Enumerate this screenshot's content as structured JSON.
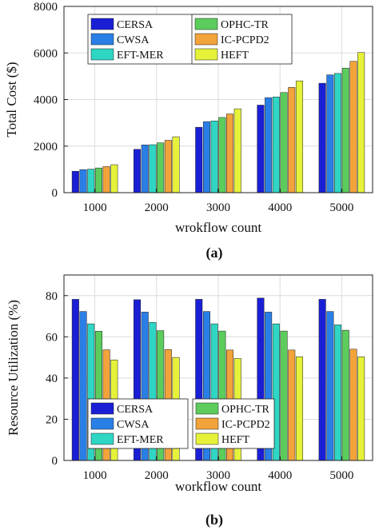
{
  "colors": {
    "CERSA": "#1a1fd6",
    "CWSA": "#2a7fe6",
    "EFT-MER": "#2fd6c4",
    "OPHC-TR": "#5ccd5c",
    "IC-PCPD2": "#f2a33a",
    "HEFT": "#e6f23a"
  },
  "chart_data": [
    {
      "type": "bar",
      "caption": "(a)",
      "xlabel": "wrokflow count",
      "ylabel": "Total Cost ($)",
      "ylim": [
        0,
        8000
      ],
      "yticks": [
        0,
        2000,
        4000,
        6000,
        8000
      ],
      "grid": true,
      "legend": "top-left, two columns",
      "categories": [
        "1000",
        "2000",
        "3000",
        "4000",
        "5000"
      ],
      "series": [
        {
          "name": "CERSA",
          "values": [
            920,
            1860,
            2810,
            3760,
            4700
          ]
        },
        {
          "name": "CWSA",
          "values": [
            990,
            2050,
            3050,
            4080,
            5060
          ]
        },
        {
          "name": "EFT-MER",
          "values": [
            1010,
            2060,
            3080,
            4110,
            5120
          ]
        },
        {
          "name": "OPHC-TR",
          "values": [
            1060,
            2140,
            3230,
            4300,
            5350
          ]
        },
        {
          "name": "IC-PCPD2",
          "values": [
            1120,
            2250,
            3380,
            4520,
            5640
          ]
        },
        {
          "name": "HEFT",
          "values": [
            1200,
            2400,
            3600,
            4800,
            6020
          ]
        }
      ]
    },
    {
      "type": "bar",
      "caption": "(b)",
      "xlabel": "workflow count",
      "ylabel": "Resource Utilization (%)",
      "ylim": [
        0,
        90
      ],
      "yticks": [
        0,
        20,
        40,
        60,
        80
      ],
      "grid": true,
      "legend": "bottom, two columns",
      "categories": [
        "1000",
        "2000",
        "3000",
        "4000",
        "5000"
      ],
      "series": [
        {
          "name": "CERSA",
          "values": [
            78.2,
            78,
            78.2,
            78.8,
            78.2
          ]
        },
        {
          "name": "CWSA",
          "values": [
            72.3,
            72,
            72.3,
            72,
            72.3
          ]
        },
        {
          "name": "EFT-MER",
          "values": [
            66.3,
            67,
            66.3,
            66.3,
            65.8
          ]
        },
        {
          "name": "OPHC-TR",
          "values": [
            62.7,
            63,
            62.8,
            62.8,
            63.2
          ]
        },
        {
          "name": "IC-PCPD2",
          "values": [
            53.7,
            53.8,
            53.6,
            53.6,
            54
          ]
        },
        {
          "name": "HEFT",
          "values": [
            48.8,
            50,
            49.5,
            50.3,
            50.3
          ]
        }
      ]
    }
  ]
}
